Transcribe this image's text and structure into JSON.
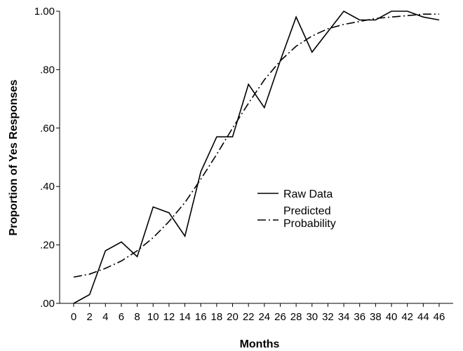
{
  "chart_data": {
    "type": "line",
    "title": "",
    "xlabel": "Months",
    "ylabel": "Proportion of Yes Responses",
    "x": [
      0,
      2,
      4,
      6,
      8,
      10,
      12,
      14,
      16,
      18,
      20,
      22,
      24,
      26,
      28,
      30,
      32,
      34,
      36,
      38,
      40,
      42,
      44,
      46
    ],
    "x_tick_labels": [
      "0",
      "2",
      "4",
      "6",
      "8",
      "10",
      "12",
      "14",
      "16",
      "18",
      "20",
      "22",
      "24",
      "26",
      "28",
      "30",
      "32",
      "34",
      "36",
      "38",
      "40",
      "42",
      "44",
      "46"
    ],
    "ylim": [
      0,
      1
    ],
    "y_ticks": [
      0,
      0.2,
      0.4,
      0.6,
      0.8,
      1.0
    ],
    "y_tick_labels": [
      ".00",
      ".20",
      ".40",
      ".60",
      ".80",
      "1.00"
    ],
    "grid": false,
    "legend_position": "center-right",
    "series": [
      {
        "name": "Raw Data",
        "style": "solid",
        "color": "#000000",
        "values": [
          0.0,
          0.03,
          0.18,
          0.21,
          0.16,
          0.33,
          0.31,
          0.23,
          0.45,
          0.57,
          0.57,
          0.75,
          0.67,
          0.83,
          0.98,
          0.86,
          0.93,
          1.0,
          0.97,
          0.97,
          1.0,
          1.0,
          0.98,
          0.97
        ]
      },
      {
        "name": "Predicted Probability",
        "name_lines": [
          "Predicted",
          "Probability"
        ],
        "style": "dash-dot",
        "color": "#000000",
        "values": [
          0.09,
          0.1,
          0.12,
          0.145,
          0.18,
          0.225,
          0.28,
          0.345,
          0.425,
          0.51,
          0.6,
          0.685,
          0.765,
          0.83,
          0.88,
          0.915,
          0.94,
          0.955,
          0.965,
          0.975,
          0.98,
          0.985,
          0.99,
          0.99
        ]
      }
    ]
  }
}
